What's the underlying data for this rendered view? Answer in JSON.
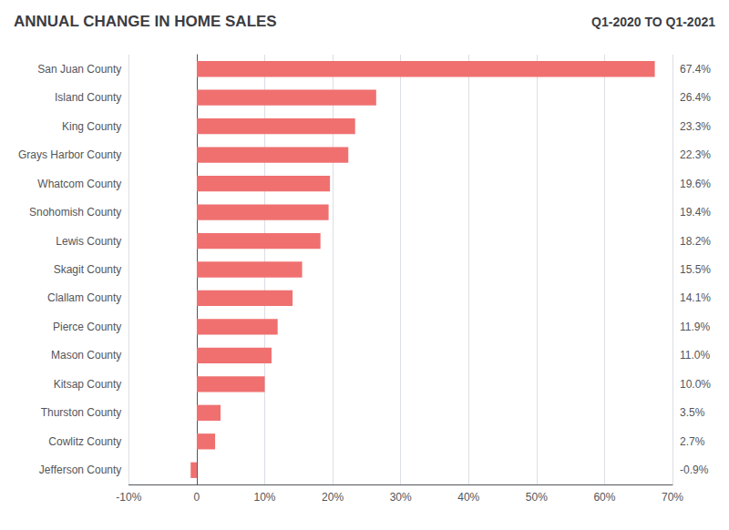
{
  "chart_data": {
    "type": "bar",
    "orientation": "horizontal",
    "title": "ANNUAL CHANGE IN HOME SALES",
    "subtitle": "Q1-2020 TO Q1-2021",
    "categories": [
      "San Juan County",
      "Island County",
      "King County",
      "Grays Harbor County",
      "Whatcom County",
      "Snohomish County",
      "Lewis County",
      "Skagit County",
      "Clallam County",
      "Pierce County",
      "Mason County",
      "Kitsap County",
      "Thurston County",
      "Cowlitz County",
      "Jefferson County"
    ],
    "values": [
      67.4,
      26.4,
      23.3,
      22.3,
      19.6,
      19.4,
      18.2,
      15.5,
      14.1,
      11.9,
      11.0,
      10.0,
      3.5,
      2.7,
      -0.9
    ],
    "value_labels": [
      "67.4%",
      "26.4%",
      "23.3%",
      "22.3%",
      "19.6%",
      "19.4%",
      "18.2%",
      "15.5%",
      "14.1%",
      "11.9%",
      "11.0%",
      "10.0%",
      "3.5%",
      "2.7%",
      "-0.9%"
    ],
    "data_labels": true,
    "color": "#F07070",
    "xlim": [
      -10,
      70
    ],
    "xticks": [
      {
        "value": -10,
        "label": "-10%"
      },
      0,
      {
        "value": 10,
        "label": "10%"
      },
      {
        "value": 20,
        "label": "20%"
      },
      {
        "value": 30,
        "label": "30%"
      },
      {
        "value": 40,
        "label": "40%"
      },
      {
        "value": 50,
        "label": "50%"
      },
      {
        "value": 60,
        "label": "60%"
      },
      {
        "value": 70,
        "label": "70%"
      }
    ],
    "grid": true
  }
}
